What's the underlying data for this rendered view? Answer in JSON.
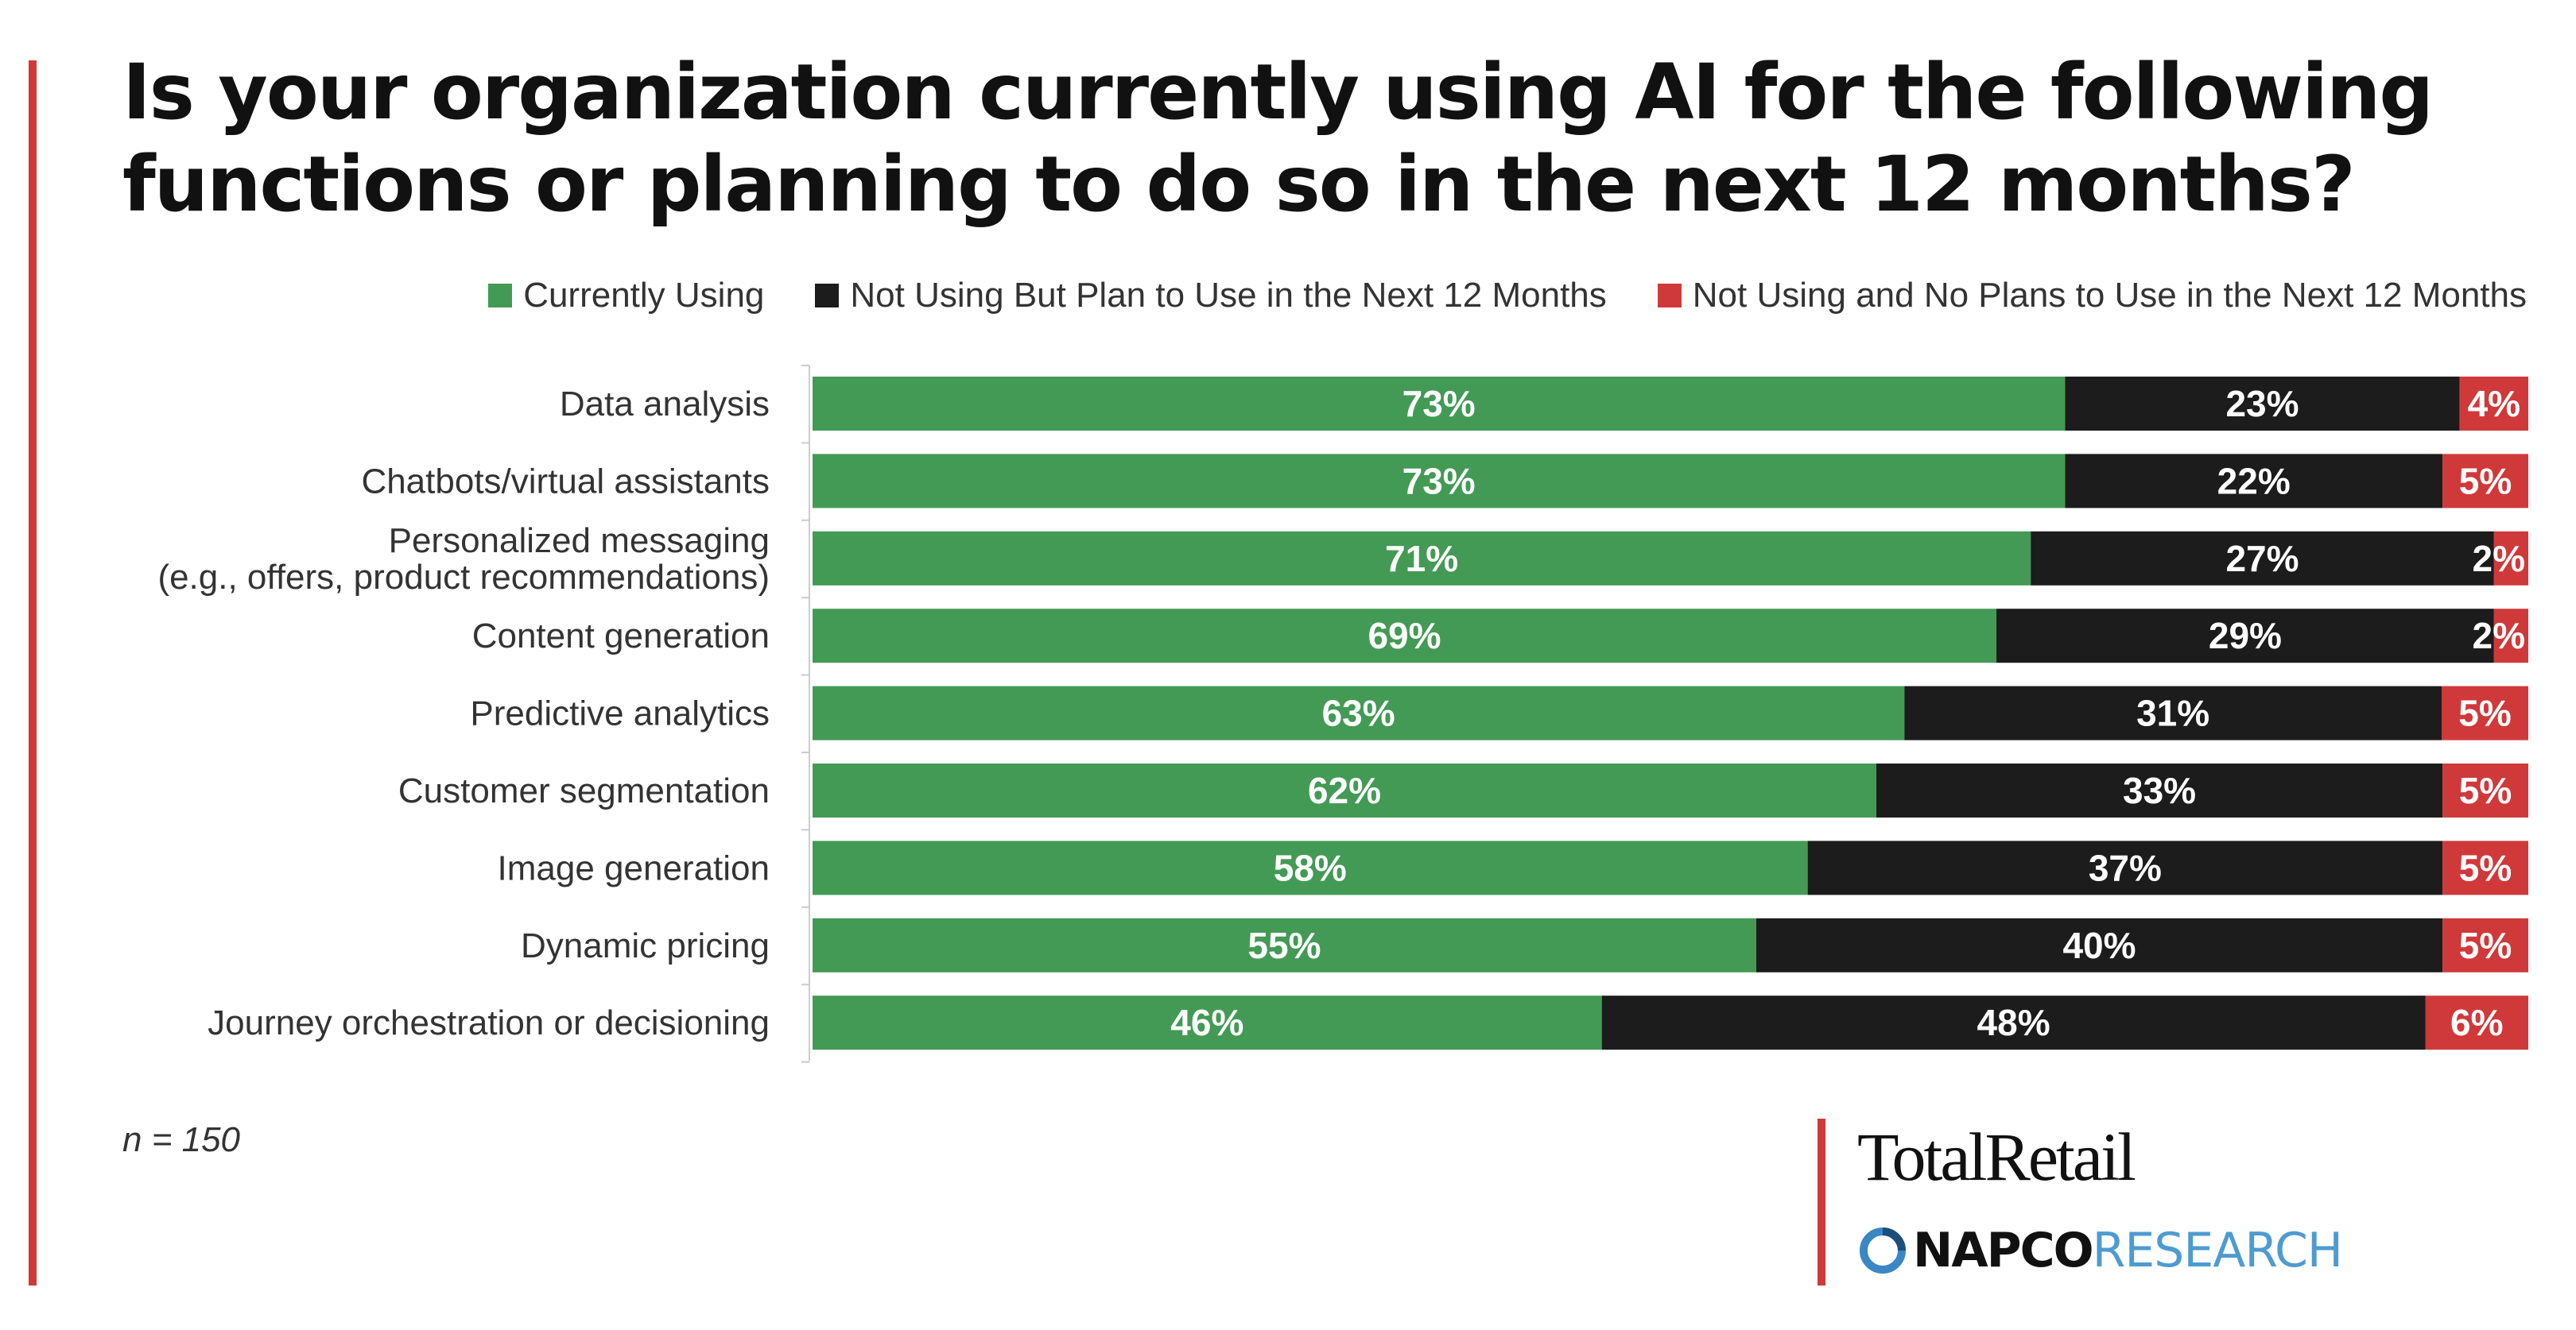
{
  "title": {
    "line1": "Is your organization currently using AI for the following",
    "line2": "functions or planning to do so in the next 12 months?"
  },
  "note": "n = 150",
  "logos": {
    "totalretail": "TotalRetail",
    "napco_bold": "NAPCO",
    "napco_light": "RESEARCH"
  },
  "colors": {
    "accent_rule": "#d0393a",
    "currently_using": "#439a55",
    "plan_to_use": "#1c1c1c",
    "no_plans": "#d0393a"
  },
  "chart_data": {
    "type": "bar",
    "orientation": "horizontal",
    "stacked": true,
    "normalized": true,
    "title": "Is your organization currently using AI for the following functions or planning to do so in the next 12 months?",
    "legend_placement": "top-right",
    "grid": false,
    "categories": [
      "Data analysis",
      "Chatbots/virtual assistants",
      [
        "Personalized messaging",
        "(e.g., offers, product recommendations)"
      ],
      "Content generation",
      "Predictive analytics",
      "Customer segmentation",
      "Image generation",
      "Dynamic pricing",
      "Journey orchestration or decisioning"
    ],
    "series": [
      {
        "name": "Currently Using",
        "color": "#439a55",
        "values": [
          73,
          73,
          71,
          69,
          63,
          62,
          58,
          55,
          46
        ]
      },
      {
        "name": "Not Using But Plan to Use in the Next 12 Months",
        "color": "#1c1c1c",
        "values": [
          23,
          22,
          27,
          29,
          31,
          33,
          37,
          40,
          48
        ]
      },
      {
        "name": "Not Using and No Plans to Use in the Next 12 Months",
        "color": "#d0393a",
        "values": [
          4,
          5,
          2,
          2,
          5,
          5,
          5,
          5,
          6
        ]
      }
    ],
    "value_suffix": "%"
  }
}
